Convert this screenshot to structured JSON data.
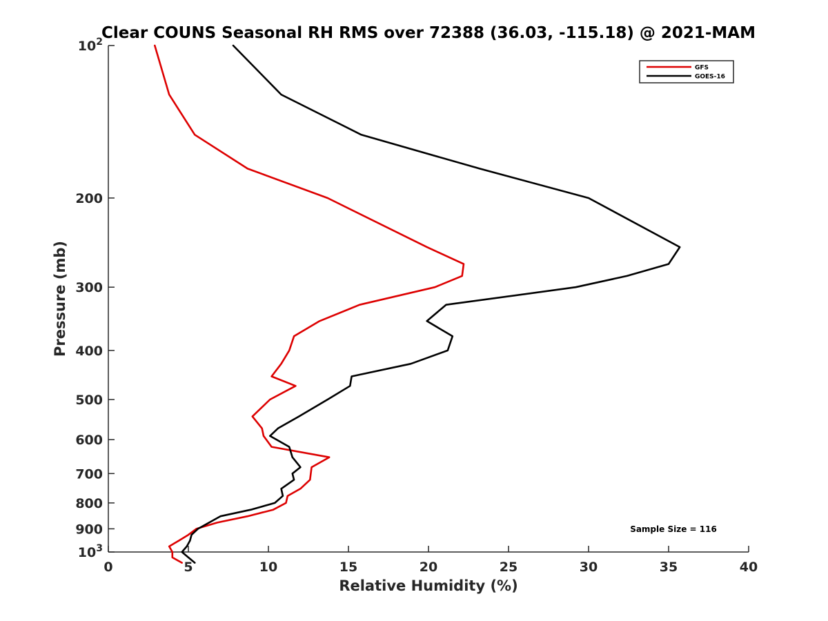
{
  "chart_data": {
    "type": "line",
    "title": "Clear COUNS Seasonal RH RMS over 72388 (36.03, -115.18) @ 2021-MAM",
    "xlabel": "Relative Humidity (%)",
    "ylabel": "Pressure (mb)",
    "xlim": [
      0,
      40
    ],
    "ylim": [
      100,
      1000
    ],
    "yscale": "log",
    "yreversed": true,
    "x_ticks": [
      0,
      5,
      10,
      15,
      20,
      25,
      30,
      35,
      40
    ],
    "y_ticks": [
      {
        "value": 100,
        "label": "10",
        "sup": "2"
      },
      {
        "value": 200,
        "label": "200"
      },
      {
        "value": 300,
        "label": "300"
      },
      {
        "value": 400,
        "label": "400"
      },
      {
        "value": 500,
        "label": "500"
      },
      {
        "value": 600,
        "label": "600"
      },
      {
        "value": 700,
        "label": "700"
      },
      {
        "value": 800,
        "label": "800"
      },
      {
        "value": 900,
        "label": "900"
      },
      {
        "value": 1000,
        "label": "10",
        "sup": "3"
      }
    ],
    "grid": false,
    "legend_position": "top-right",
    "series": [
      {
        "name": "GFS",
        "color": "#dd0000",
        "points": [
          [
            2.9,
            100
          ],
          [
            3.8,
            125
          ],
          [
            5.4,
            150
          ],
          [
            8.7,
            175
          ],
          [
            13.7,
            200
          ],
          [
            19.9,
            250
          ],
          [
            22.2,
            270
          ],
          [
            22.1,
            285
          ],
          [
            20.4,
            300
          ],
          [
            15.7,
            325
          ],
          [
            13.2,
            350
          ],
          [
            11.6,
            375
          ],
          [
            11.3,
            400
          ],
          [
            10.8,
            425
          ],
          [
            10.2,
            450
          ],
          [
            11.7,
            470
          ],
          [
            10.1,
            500
          ],
          [
            9.0,
            540
          ],
          [
            9.6,
            570
          ],
          [
            9.7,
            590
          ],
          [
            10.2,
            620
          ],
          [
            13.8,
            650
          ],
          [
            12.7,
            680
          ],
          [
            12.6,
            720
          ],
          [
            12.0,
            750
          ],
          [
            11.2,
            775
          ],
          [
            11.1,
            800
          ],
          [
            10.3,
            825
          ],
          [
            8.7,
            850
          ],
          [
            6.8,
            875
          ],
          [
            5.5,
            900
          ],
          [
            5.0,
            925
          ],
          [
            4.4,
            950
          ],
          [
            3.8,
            975
          ],
          [
            4.0,
            1000
          ],
          [
            4.0,
            1025
          ],
          [
            4.6,
            1050
          ]
        ]
      },
      {
        "name": "GOES-16",
        "color": "#000000",
        "points": [
          [
            7.8,
            100
          ],
          [
            10.8,
            125
          ],
          [
            15.8,
            150
          ],
          [
            23.2,
            175
          ],
          [
            30.0,
            200
          ],
          [
            35.7,
            250
          ],
          [
            35.0,
            270
          ],
          [
            32.4,
            285
          ],
          [
            29.2,
            300
          ],
          [
            21.1,
            325
          ],
          [
            19.9,
            350
          ],
          [
            21.5,
            375
          ],
          [
            21.2,
            400
          ],
          [
            18.9,
            425
          ],
          [
            15.2,
            450
          ],
          [
            15.1,
            470
          ],
          [
            13.7,
            500
          ],
          [
            11.9,
            540
          ],
          [
            10.6,
            570
          ],
          [
            10.1,
            590
          ],
          [
            11.3,
            620
          ],
          [
            11.5,
            650
          ],
          [
            12.0,
            680
          ],
          [
            11.5,
            700
          ],
          [
            11.6,
            720
          ],
          [
            10.8,
            750
          ],
          [
            10.9,
            775
          ],
          [
            10.4,
            800
          ],
          [
            8.9,
            825
          ],
          [
            7.0,
            850
          ],
          [
            5.6,
            900
          ],
          [
            5.2,
            925
          ],
          [
            5.1,
            950
          ],
          [
            4.9,
            975
          ],
          [
            4.6,
            1000
          ],
          [
            5.0,
            1025
          ],
          [
            5.4,
            1050
          ]
        ]
      }
    ],
    "annotation": "Sample Size = 116"
  }
}
